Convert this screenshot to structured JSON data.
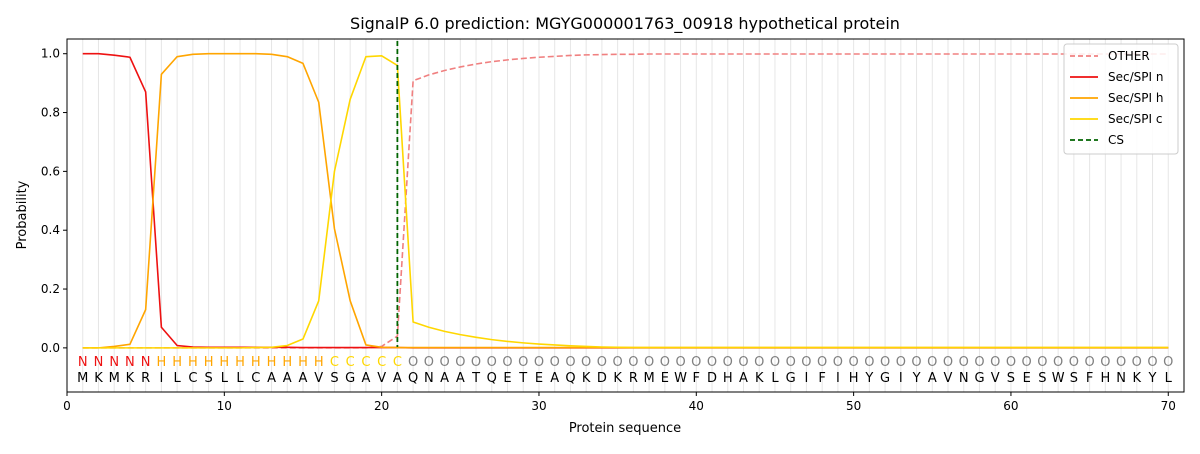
{
  "chart_data": {
    "type": "line",
    "title": "SignalP 6.0 prediction: MGYG000001763_00918 hypothetical protein",
    "xlabel": "Protein sequence",
    "ylabel": "Probability",
    "xlim": [
      0,
      71
    ],
    "ylim": [
      -0.15,
      1.05
    ],
    "xticks": [
      0,
      10,
      20,
      30,
      40,
      50,
      60,
      70
    ],
    "yticks": [
      0.0,
      0.2,
      0.4,
      0.6,
      0.8,
      1.0
    ],
    "grid": "vertical lines at each residue",
    "legend_position": "top-right",
    "sequence": [
      "M",
      "K",
      "M",
      "K",
      "R",
      "I",
      "L",
      "C",
      "S",
      "L",
      "L",
      "C",
      "A",
      "A",
      "A",
      "V",
      "S",
      "G",
      "A",
      "V",
      "A",
      "Q",
      "N",
      "A",
      "A",
      "T",
      "Q",
      "E",
      "T",
      "E",
      "A",
      "Q",
      "K",
      "D",
      "K",
      "R",
      "M",
      "E",
      "W",
      "F",
      "D",
      "H",
      "A",
      "K",
      "L",
      "G",
      "I",
      "F",
      "I",
      "H",
      "Y",
      "G",
      "I",
      "Y",
      "A",
      "V",
      "N",
      "G",
      "V",
      "S",
      "E",
      "S",
      "W",
      "S",
      "F",
      "H",
      "N",
      "K",
      "Y",
      "L"
    ],
    "region_labels": [
      "N",
      "N",
      "N",
      "N",
      "N",
      "H",
      "H",
      "H",
      "H",
      "H",
      "H",
      "H",
      "H",
      "H",
      "H",
      "H",
      "C",
      "C",
      "C",
      "C",
      "C",
      "O",
      "O",
      "O",
      "O",
      "O",
      "O",
      "O",
      "O",
      "O",
      "O",
      "O",
      "O",
      "O",
      "O",
      "O",
      "O",
      "O",
      "O",
      "O",
      "O",
      "O",
      "O",
      "O",
      "O",
      "O",
      "O",
      "O",
      "O",
      "O",
      "O",
      "O",
      "O",
      "O",
      "O",
      "O",
      "O",
      "O",
      "O",
      "O",
      "O",
      "O",
      "O",
      "O",
      "O",
      "O",
      "O",
      "O",
      "O",
      "O"
    ],
    "region_colors": {
      "N": "#ee1111",
      "H": "#ffa500",
      "C": "#ffd700",
      "O": "#808080"
    },
    "cleavage_site": 21,
    "series": [
      {
        "name": "OTHER",
        "color": "#f08080",
        "dash": "dashed",
        "values": [
          0,
          0,
          0,
          0,
          0,
          0,
          0,
          0,
          0,
          0,
          0,
          0,
          0,
          0,
          0,
          0,
          0,
          0,
          0,
          0.005,
          0.04,
          0.908,
          0.928,
          0.943,
          0.955,
          0.965,
          0.973,
          0.979,
          0.984,
          0.988,
          0.991,
          0.994,
          0.996,
          0.997,
          0.998,
          0.998,
          0.999,
          0.999,
          0.999,
          0.999,
          0.999,
          0.999,
          0.999,
          0.999,
          0.999,
          0.999,
          0.999,
          0.999,
          0.999,
          0.999,
          0.999,
          0.999,
          0.999,
          0.999,
          0.999,
          0.999,
          0.999,
          0.999,
          0.999,
          0.999,
          0.999,
          0.999,
          0.999,
          0.999,
          0.999,
          0.999,
          0.999,
          0.999,
          0.999,
          0.999
        ]
      },
      {
        "name": "Sec/SPI n",
        "color": "#ee1111",
        "dash": "solid",
        "values": [
          1.0,
          1.0,
          0.995,
          0.988,
          0.87,
          0.07,
          0.008,
          0.003,
          0.002,
          0.002,
          0.002,
          0.002,
          0.002,
          0.002,
          0.001,
          0.001,
          0.001,
          0.001,
          0.001,
          0.001,
          0.001,
          0,
          0,
          0,
          0,
          0,
          0,
          0,
          0,
          0,
          0,
          0,
          0,
          0,
          0,
          0,
          0,
          0,
          0,
          0,
          0,
          0,
          0,
          0,
          0,
          0,
          0,
          0,
          0,
          0,
          0,
          0,
          0,
          0,
          0,
          0,
          0,
          0,
          0,
          0,
          0,
          0,
          0,
          0,
          0,
          0,
          0,
          0,
          0,
          0
        ]
      },
      {
        "name": "Sec/SPI h",
        "color": "#ffa500",
        "dash": "solid",
        "values": [
          0.0,
          0.0,
          0.005,
          0.012,
          0.13,
          0.93,
          0.99,
          0.998,
          1.0,
          1.0,
          1.0,
          1.0,
          0.998,
          0.99,
          0.967,
          0.835,
          0.405,
          0.16,
          0.01,
          0.002,
          0.001,
          0.001,
          0.001,
          0.001,
          0.001,
          0.001,
          0.001,
          0.001,
          0.001,
          0.001,
          0.001,
          0.001,
          0.001,
          0.001,
          0.001,
          0.001,
          0.001,
          0.001,
          0.001,
          0.001,
          0.001,
          0.001,
          0.001,
          0.001,
          0.001,
          0.001,
          0.001,
          0.001,
          0.001,
          0.001,
          0.001,
          0.001,
          0.001,
          0.001,
          0.001,
          0.001,
          0.001,
          0.001,
          0.001,
          0.001,
          0.001,
          0.001,
          0.001,
          0.001,
          0.001,
          0.001,
          0.001,
          0.001,
          0.001,
          0.001
        ]
      },
      {
        "name": "Sec/SPI c",
        "color": "#ffd700",
        "dash": "solid",
        "values": [
          0,
          0,
          0,
          0,
          0,
          0,
          0,
          0,
          0,
          0,
          0,
          0.001,
          0.002,
          0.008,
          0.03,
          0.16,
          0.6,
          0.845,
          0.99,
          0.993,
          0.96,
          0.088,
          0.07,
          0.056,
          0.045,
          0.036,
          0.028,
          0.022,
          0.017,
          0.013,
          0.01,
          0.007,
          0.005,
          0.003,
          0.002,
          0.001,
          0.001,
          0.001,
          0.001,
          0.001,
          0.001,
          0.001,
          0.001,
          0.001,
          0.001,
          0.001,
          0.001,
          0.001,
          0.001,
          0.001,
          0.001,
          0.001,
          0.001,
          0.001,
          0.001,
          0.001,
          0.001,
          0.001,
          0.001,
          0.001,
          0.001,
          0.001,
          0.001,
          0.001,
          0.001,
          0.001,
          0.001,
          0.001,
          0.001,
          0.001
        ]
      }
    ],
    "cs_series": {
      "name": "CS",
      "color": "#006400",
      "dash": "dashed"
    },
    "legend": [
      "OTHER",
      "Sec/SPI n",
      "Sec/SPI h",
      "Sec/SPI c",
      "CS"
    ]
  }
}
